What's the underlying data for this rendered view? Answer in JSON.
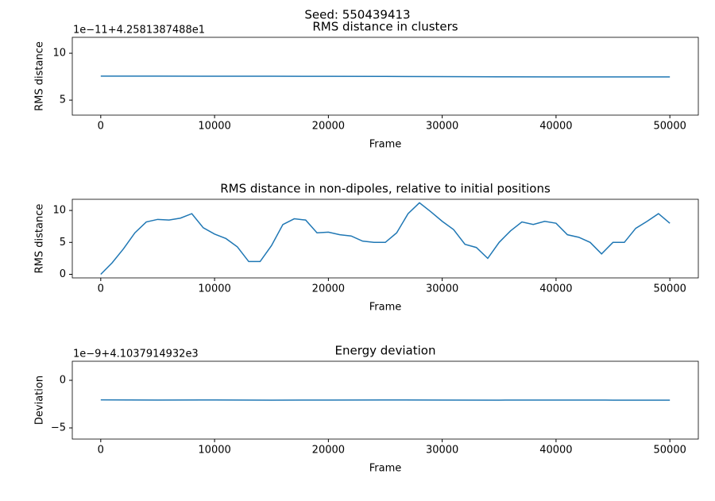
{
  "title": "Seed: 550439413",
  "chart_data": [
    {
      "type": "line",
      "title": "RMS distance in clusters",
      "offset_label": "1e−11+4.2581387488e1",
      "x_label": "Frame",
      "y_label": "RMS distance",
      "x": [
        0,
        5000,
        10000,
        15000,
        20000,
        25000,
        30000,
        35000,
        40000,
        45000,
        50000
      ],
      "series": [
        {
          "color": "#1f77b4",
          "values": [
            7.56,
            7.56,
            7.55,
            7.55,
            7.54,
            7.53,
            7.51,
            7.49,
            7.48,
            7.48,
            7.48
          ]
        }
      ],
      "xlim": [
        -2500,
        52500
      ],
      "ylim": [
        3.4,
        11.7
      ],
      "xticks": [
        0,
        10000,
        20000,
        30000,
        40000,
        50000
      ],
      "yticks": [
        5,
        10
      ]
    },
    {
      "type": "line",
      "title": "RMS distance in non-dipoles, relative to initial positions",
      "x_label": "Frame",
      "y_label": "RMS distance",
      "x": [
        0,
        1000,
        2000,
        3000,
        4000,
        5000,
        6000,
        7000,
        8000,
        9000,
        10000,
        11000,
        12000,
        13000,
        14000,
        15000,
        16000,
        17000,
        18000,
        19000,
        20000,
        21000,
        22000,
        23000,
        24000,
        25000,
        26000,
        27000,
        28000,
        29000,
        30000,
        31000,
        32000,
        33000,
        34000,
        35000,
        36000,
        37000,
        38000,
        39000,
        40000,
        41000,
        42000,
        43000,
        44000,
        45000,
        46000,
        47000,
        48000,
        49000,
        50000
      ],
      "series": [
        {
          "color": "#1f77b4",
          "values": [
            0,
            1.8,
            4.0,
            6.5,
            8.2,
            8.6,
            8.5,
            8.8,
            9.5,
            7.3,
            6.3,
            5.6,
            4.3,
            2.0,
            2.0,
            4.5,
            7.8,
            8.7,
            8.5,
            6.5,
            6.6,
            6.2,
            6.0,
            5.2,
            5.0,
            5.0,
            6.5,
            9.5,
            11.2,
            9.8,
            8.3,
            7.0,
            4.7,
            4.2,
            2.5,
            5.0,
            6.8,
            8.2,
            7.8,
            8.3,
            8.0,
            6.2,
            5.8,
            5.0,
            3.2,
            5.0,
            5.0,
            7.2,
            8.3,
            9.5,
            8.0
          ]
        }
      ],
      "xlim": [
        -2500,
        52500
      ],
      "ylim": [
        -0.56,
        11.75
      ],
      "xticks": [
        0,
        10000,
        20000,
        30000,
        40000,
        50000
      ],
      "yticks": [
        0,
        5,
        10
      ]
    },
    {
      "type": "line",
      "title": "Energy deviation",
      "offset_label": "1e−9+4.1037914932e3",
      "x_label": "Frame",
      "y_label": "Deviation",
      "x": [
        0,
        5000,
        10000,
        15000,
        20000,
        25000,
        30000,
        35000,
        40000,
        45000,
        50000
      ],
      "series": [
        {
          "color": "#1f77b4",
          "values": [
            -2.05,
            -2.07,
            -2.06,
            -2.08,
            -2.07,
            -2.06,
            -2.07,
            -2.08,
            -2.07,
            -2.08,
            -2.09
          ]
        }
      ],
      "xlim": [
        -2500,
        52500
      ],
      "ylim": [
        -6.17,
        2.0
      ],
      "xticks": [
        0,
        10000,
        20000,
        30000,
        40000,
        50000
      ],
      "yticks": [
        {
          "value": -5,
          "label": "−5"
        },
        0
      ]
    }
  ]
}
